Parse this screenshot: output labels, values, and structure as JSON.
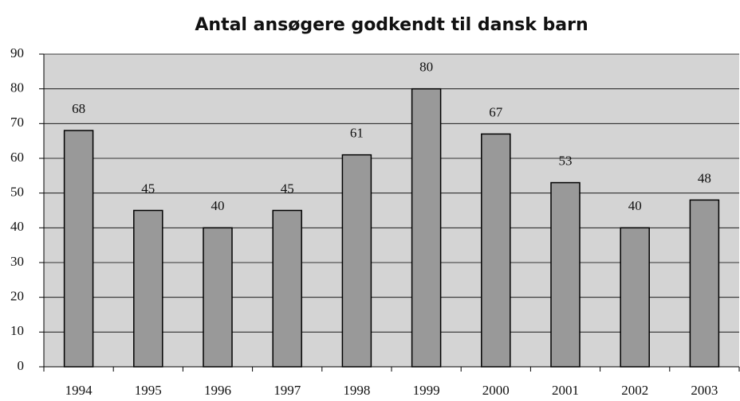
{
  "chart_data": {
    "type": "bar",
    "title": "Antal ansøgere godkendt til dansk barn",
    "categories": [
      "1994",
      "1995",
      "1996",
      "1997",
      "1998",
      "1999",
      "2000",
      "2001",
      "2002",
      "2003"
    ],
    "values": [
      68,
      45,
      40,
      45,
      61,
      80,
      67,
      53,
      40,
      48
    ],
    "color": "#999999",
    "background": "#d4d4d4",
    "ylim": [
      0,
      90
    ],
    "yticks": [
      0,
      10,
      20,
      30,
      40,
      50,
      60,
      70,
      80,
      90
    ],
    "grid": true
  }
}
